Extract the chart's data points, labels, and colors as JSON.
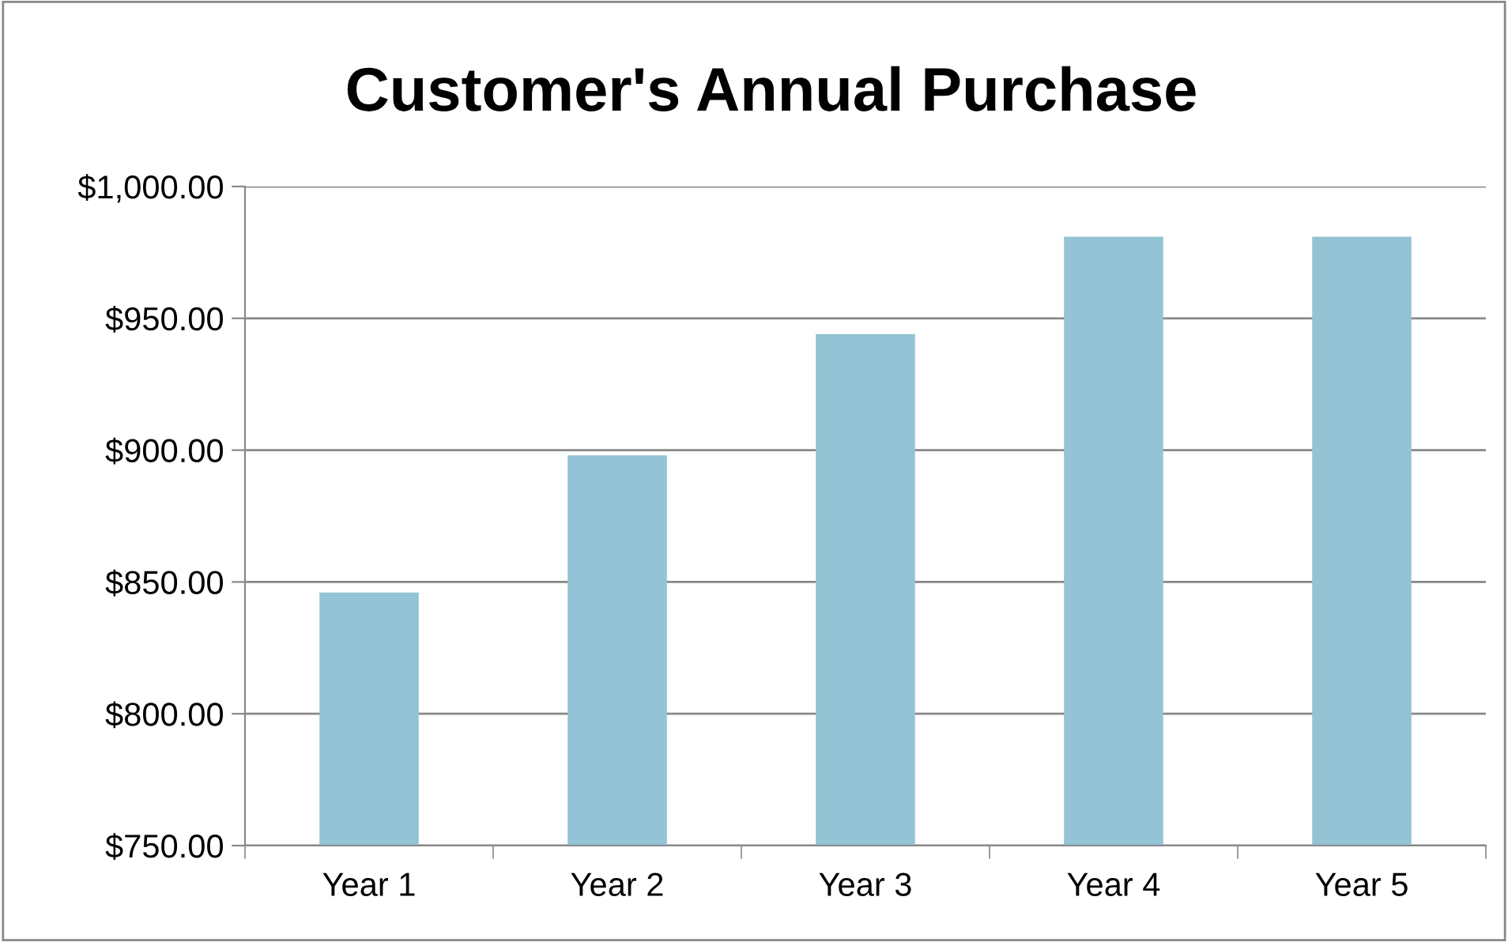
{
  "chart_data": {
    "type": "bar",
    "title": "Customer's Annual Purchase",
    "categories": [
      "Year 1",
      "Year 2",
      "Year 3",
      "Year 4",
      "Year 5"
    ],
    "values": [
      846,
      898,
      944,
      981,
      981
    ],
    "color": "#93c3d4",
    "ylim": [
      750,
      1000
    ],
    "yticks": [
      {
        "value": 750,
        "label": "$750.00"
      },
      {
        "value": 800,
        "label": "$800.00"
      },
      {
        "value": 850,
        "label": "$850.00"
      },
      {
        "value": 900,
        "label": "$900.00"
      },
      {
        "value": 950,
        "label": "$950.00"
      },
      {
        "value": 1000,
        "label": "$1,000.00"
      }
    ],
    "grid": "y",
    "legend": false
  }
}
